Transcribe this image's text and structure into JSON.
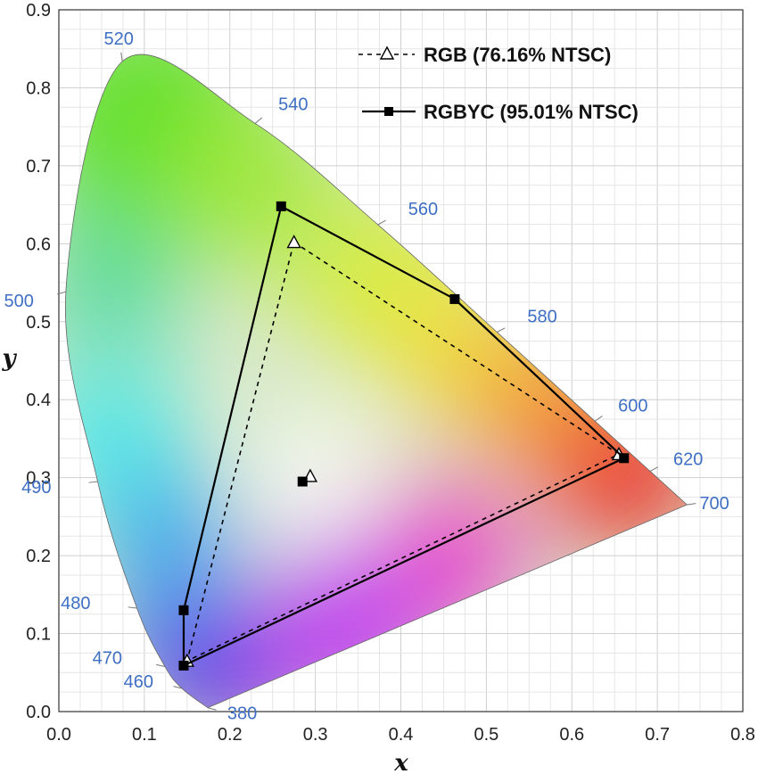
{
  "chart_data": {
    "type": "scatter",
    "title": "",
    "xlabel": "x",
    "ylabel": "y",
    "xlim": [
      0.0,
      0.8
    ],
    "ylim": [
      0.0,
      0.9
    ],
    "x_ticks": [
      "0.0",
      "0.1",
      "0.2",
      "0.3",
      "0.4",
      "0.5",
      "0.6",
      "0.7",
      "0.8"
    ],
    "y_ticks": [
      "0.0",
      "0.1",
      "0.2",
      "0.3",
      "0.4",
      "0.5",
      "0.6",
      "0.7",
      "0.8",
      "0.9"
    ],
    "grid": true,
    "legend_position": "top-right",
    "spectral_locus": [
      {
        "wl": "380",
        "x": 0.1741,
        "y": 0.005
      },
      {
        "wl": "460",
        "x": 0.144,
        "y": 0.0297
      },
      {
        "wl": "470",
        "x": 0.1241,
        "y": 0.0578
      },
      {
        "wl": "480",
        "x": 0.0913,
        "y": 0.1327
      },
      {
        "wl": "490",
        "x": 0.0454,
        "y": 0.295
      },
      {
        "wl": "500",
        "x": 0.0082,
        "y": 0.5384
      },
      {
        "wl": "520",
        "x": 0.0743,
        "y": 0.8338
      },
      {
        "wl": "540",
        "x": 0.2296,
        "y": 0.7543
      },
      {
        "wl": "560",
        "x": 0.3731,
        "y": 0.6245
      },
      {
        "wl": "580",
        "x": 0.5125,
        "y": 0.4866
      },
      {
        "wl": "600",
        "x": 0.627,
        "y": 0.3725
      },
      {
        "wl": "620",
        "x": 0.6915,
        "y": 0.3083
      },
      {
        "wl": "700",
        "x": 0.7347,
        "y": 0.2653
      }
    ],
    "series": [
      {
        "name": "RGB (76.16% NTSC)",
        "style": "dashed",
        "marker": "triangle-open",
        "color": "#000000",
        "gamut": [
          {
            "x": 0.275,
            "y": 0.602
          },
          {
            "x": 0.655,
            "y": 0.33
          },
          {
            "x": 0.15,
            "y": 0.065
          }
        ],
        "white_point": {
          "x": 0.294,
          "y": 0.302
        }
      },
      {
        "name": "RGBYC (95.01% NTSC)",
        "style": "solid",
        "marker": "square-filled",
        "color": "#000000",
        "gamut": [
          {
            "x": 0.26,
            "y": 0.648
          },
          {
            "x": 0.463,
            "y": 0.529
          },
          {
            "x": 0.661,
            "y": 0.325
          },
          {
            "x": 0.146,
            "y": 0.059
          },
          {
            "x": 0.146,
            "y": 0.13
          }
        ],
        "white_point": {
          "x": 0.285,
          "y": 0.295
        }
      }
    ]
  }
}
